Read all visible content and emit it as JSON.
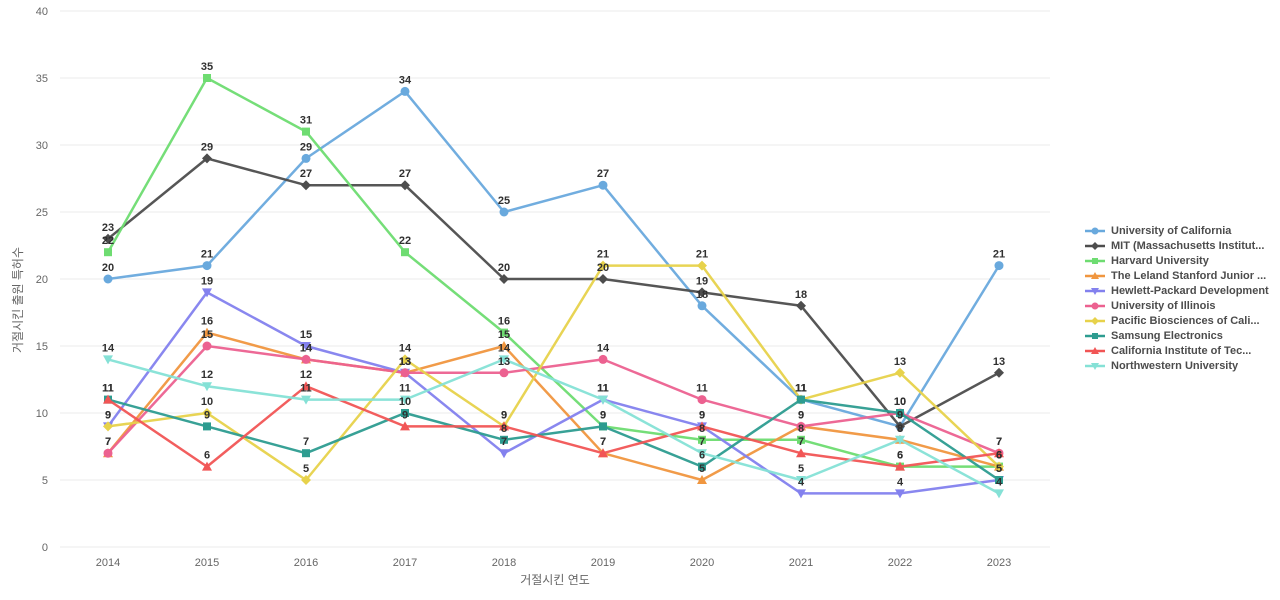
{
  "chart_data": {
    "type": "line",
    "x": [
      "2014",
      "2015",
      "2016",
      "2017",
      "2018",
      "2019",
      "2020",
      "2021",
      "2022",
      "2023"
    ],
    "xlabel": "거절시킨 연도",
    "ylabel": "거절시킨 출원 특허수",
    "ylim": [
      0,
      40
    ],
    "yticks": [
      0,
      5,
      10,
      15,
      20,
      25,
      30,
      35,
      40
    ],
    "grid": true,
    "legend_position": "right",
    "series": [
      {
        "name": "University of California",
        "color": "#69a9dd",
        "marker": "circle",
        "values": [
          20,
          21,
          29,
          34,
          25,
          27,
          18,
          11,
          9,
          21
        ]
      },
      {
        "name": "MIT (Massachusetts Institut...",
        "color": "#4d4d4d",
        "marker": "diamond",
        "values": [
          23,
          29,
          27,
          27,
          20,
          20,
          19,
          18,
          9,
          13
        ]
      },
      {
        "name": "Harvard University",
        "color": "#6edc71",
        "marker": "square",
        "values": [
          22,
          35,
          31,
          22,
          16,
          9,
          8,
          8,
          6,
          6
        ]
      },
      {
        "name": "The Leland Stanford Junior ...",
        "color": "#f0963f",
        "marker": "triangle-up",
        "values": [
          7,
          16,
          14,
          13,
          15,
          7,
          5,
          9,
          8,
          6
        ]
      },
      {
        "name": "Hewlett-Packard Development",
        "color": "#8381ee",
        "marker": "triangle-down",
        "values": [
          9,
          19,
          15,
          13,
          7,
          11,
          9,
          4,
          4,
          5
        ]
      },
      {
        "name": "University of Illinois",
        "color": "#ec6190",
        "marker": "circle",
        "values": [
          7,
          15,
          14,
          13,
          13,
          14,
          11,
          9,
          10,
          7
        ]
      },
      {
        "name": "Pacific Biosciences of Cali...",
        "color": "#e7d24b",
        "marker": "diamond",
        "values": [
          9,
          10,
          5,
          14,
          9,
          21,
          21,
          11,
          13,
          6
        ]
      },
      {
        "name": "Samsung Electronics",
        "color": "#2d9c90",
        "marker": "square",
        "values": [
          11,
          9,
          7,
          10,
          8,
          9,
          6,
          11,
          10,
          5
        ]
      },
      {
        "name": "California Institute of Tec...",
        "color": "#f15555",
        "marker": "triangle-up",
        "values": [
          11,
          6,
          12,
          9,
          9,
          7,
          9,
          7,
          6,
          7
        ]
      },
      {
        "name": "Northwestern University",
        "color": "#85e1d6",
        "marker": "triangle-down",
        "values": [
          14,
          12,
          11,
          11,
          14,
          11,
          7,
          5,
          8,
          4
        ]
      }
    ]
  }
}
